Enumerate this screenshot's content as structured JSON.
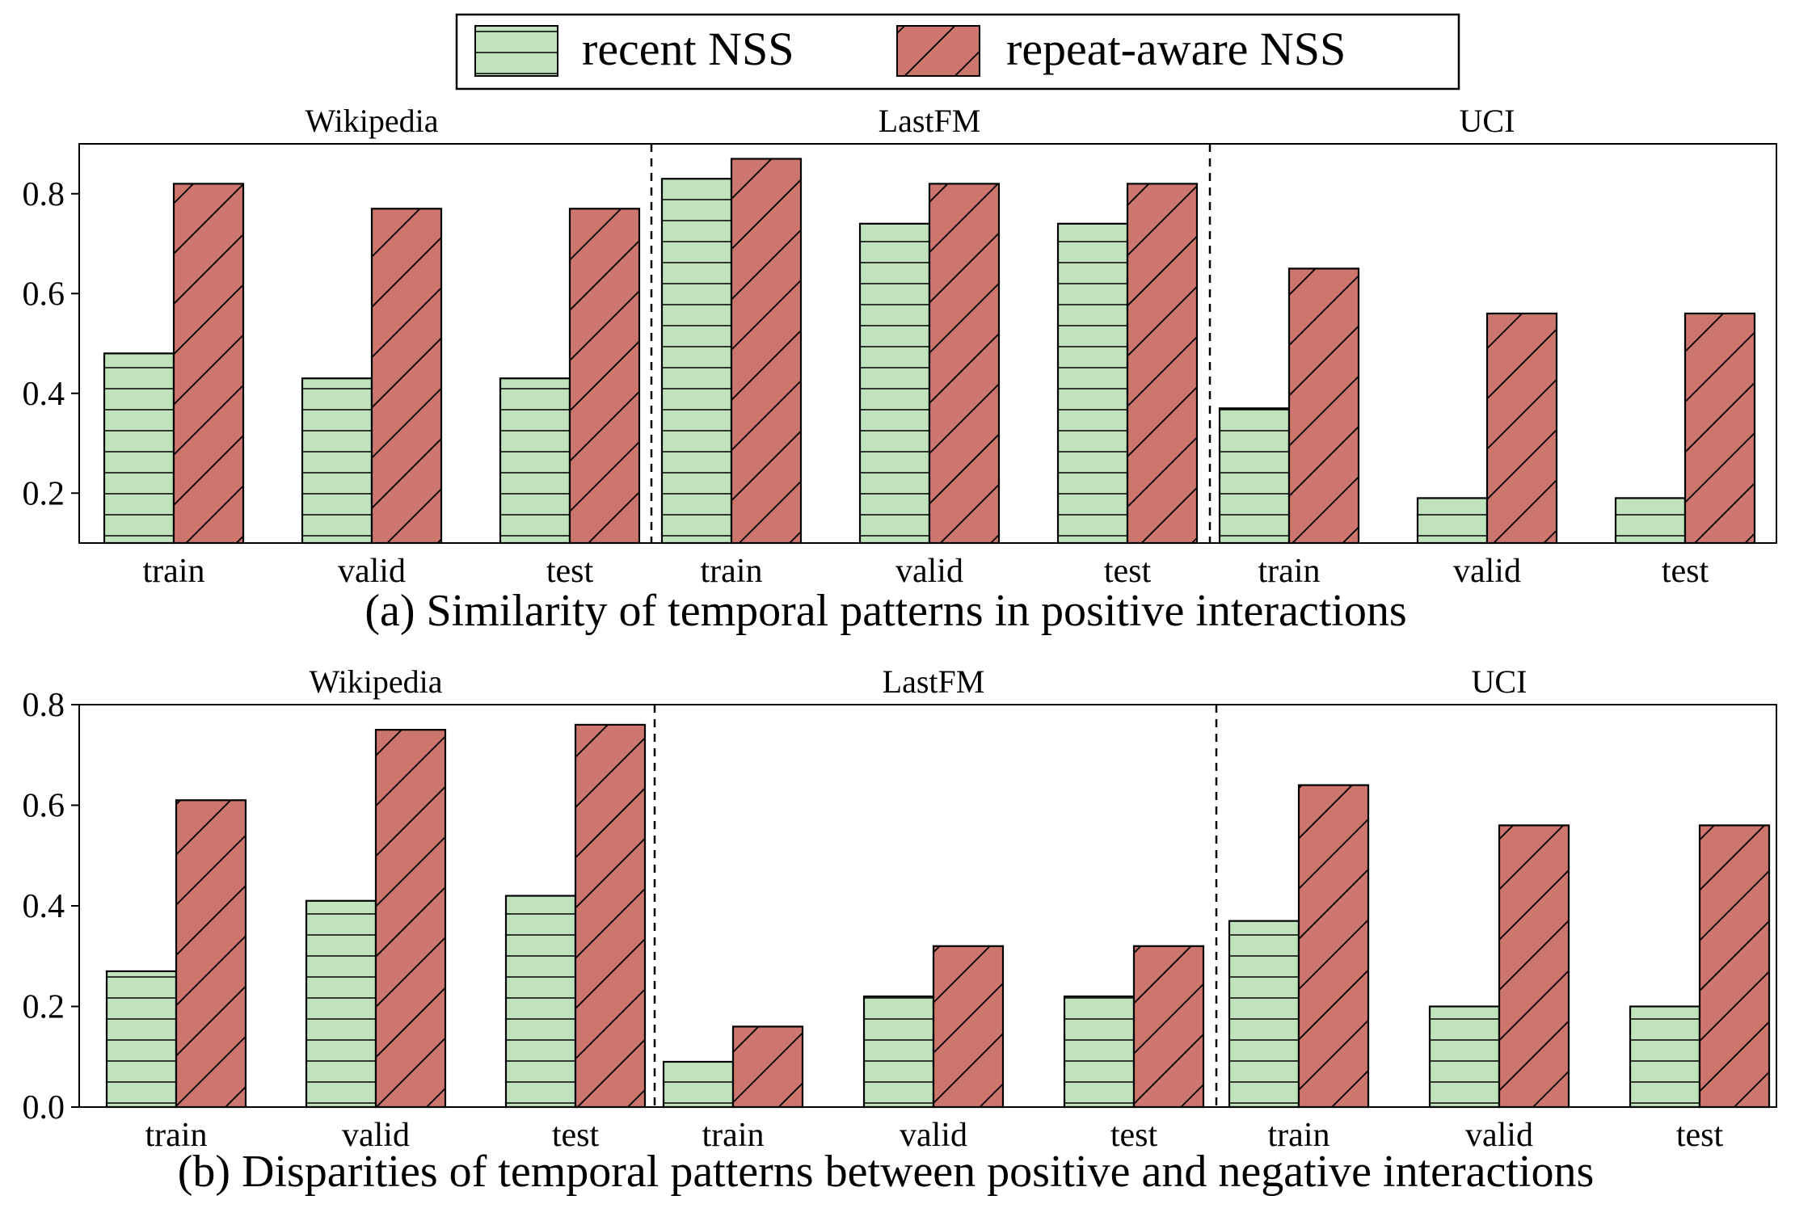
{
  "legend": {
    "items": [
      {
        "label": "recent NSS",
        "color": "#c0e2bd",
        "hatch": "horizontal"
      },
      {
        "label": "repeat-aware NSS",
        "color": "#cc766d",
        "hatch": "diagonal"
      }
    ]
  },
  "colors": {
    "recent": "#c0e2bd",
    "repeat": "#cc766d",
    "edge": "#000000"
  },
  "chart_data": [
    {
      "type": "bar",
      "caption": "(a) Similarity of temporal patterns in positive interactions",
      "groups": [
        "Wikipedia",
        "LastFM",
        "UCI"
      ],
      "categories": [
        "train",
        "valid",
        "test",
        "train",
        "valid",
        "test",
        "train",
        "valid",
        "test"
      ],
      "series": [
        {
          "name": "recent NSS",
          "values": [
            0.48,
            0.43,
            0.43,
            0.83,
            0.74,
            0.74,
            0.37,
            0.19,
            0.19
          ]
        },
        {
          "name": "repeat-aware NSS",
          "values": [
            0.82,
            0.77,
            0.77,
            0.87,
            0.82,
            0.82,
            0.65,
            0.56,
            0.56
          ]
        }
      ],
      "yticks": [
        "0.2",
        "0.4",
        "0.6",
        "0.8"
      ],
      "ytick_values": [
        0.2,
        0.4,
        0.6,
        0.8
      ],
      "ylim": [
        0.1,
        0.9
      ],
      "xlabel": "",
      "ylabel": ""
    },
    {
      "type": "bar",
      "caption": "(b) Disparities of temporal patterns between positive and negative interactions",
      "groups": [
        "Wikipedia",
        "LastFM",
        "UCI"
      ],
      "categories": [
        "train",
        "valid",
        "test",
        "train",
        "valid",
        "test",
        "train",
        "valid",
        "test"
      ],
      "series": [
        {
          "name": "recent NSS",
          "values": [
            0.27,
            0.41,
            0.42,
            0.09,
            0.22,
            0.22,
            0.37,
            0.2,
            0.2
          ]
        },
        {
          "name": "repeat-aware NSS",
          "values": [
            0.61,
            0.75,
            0.76,
            0.16,
            0.32,
            0.32,
            0.64,
            0.56,
            0.56
          ]
        }
      ],
      "yticks": [
        "0.0",
        "0.2",
        "0.4",
        "0.6",
        "0.8"
      ],
      "ytick_values": [
        0.0,
        0.2,
        0.4,
        0.6,
        0.8
      ],
      "ylim": [
        0.0,
        0.8
      ],
      "xlabel": "",
      "ylabel": ""
    }
  ]
}
